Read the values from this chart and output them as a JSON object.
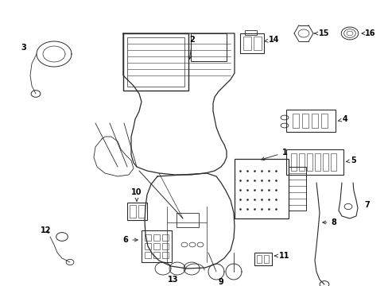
{
  "bg_color": "#ffffff",
  "line_color": "#2a2a2a",
  "lw": 0.7,
  "figsize": [
    4.89,
    3.6
  ],
  "dpi": 100
}
